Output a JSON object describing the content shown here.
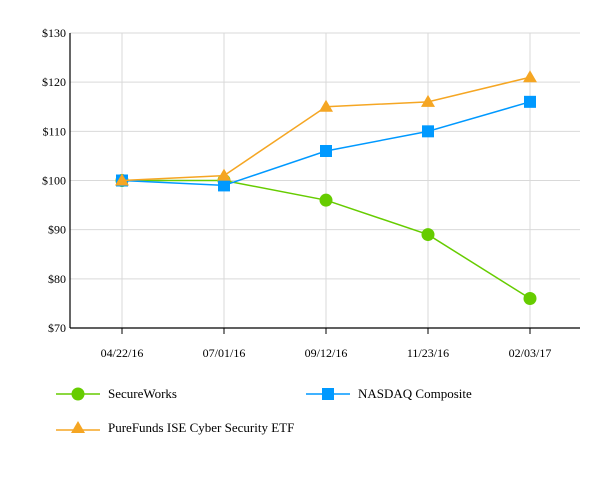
{
  "chart_data": {
    "type": "line",
    "title": "",
    "xlabel": "",
    "ylabel": "",
    "categories": [
      "04/22/16",
      "07/01/16",
      "09/12/16",
      "11/23/16",
      "02/03/17"
    ],
    "ylim": [
      70,
      130
    ],
    "yticks": [
      70,
      80,
      90,
      100,
      110,
      120,
      130
    ],
    "ytick_labels": [
      "$70",
      "$80",
      "$90",
      "$100",
      "$110",
      "$120",
      "$130"
    ],
    "grid": true,
    "legend_position": "bottom",
    "series": [
      {
        "name": "SecureWorks",
        "color": "#66cc00",
        "marker": "circle",
        "values": [
          100,
          100,
          96,
          89,
          76
        ]
      },
      {
        "name": "NASDAQ Composite",
        "color": "#0099ff",
        "marker": "square",
        "values": [
          100,
          99,
          106,
          110,
          116
        ]
      },
      {
        "name": "PureFunds ISE Cyber Security ETF",
        "color": "#f5a623",
        "marker": "triangle",
        "values": [
          100,
          101,
          115,
          116,
          121
        ]
      }
    ]
  }
}
